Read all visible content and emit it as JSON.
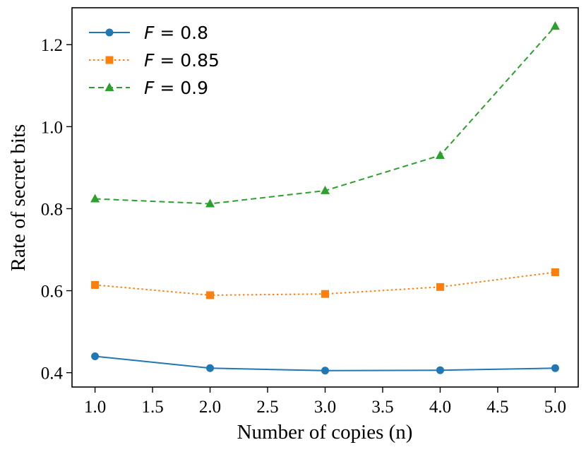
{
  "chart_data": {
    "type": "line",
    "xlabel": "Number of copies (n)",
    "ylabel": "Rate of secret bits",
    "xlim": [
      0.8,
      5.2
    ],
    "ylim": [
      0.365,
      1.29
    ],
    "xticks": [
      1.0,
      1.5,
      2.0,
      2.5,
      3.0,
      3.5,
      4.0,
      4.5,
      5.0
    ],
    "xtick_labels": [
      "1.0",
      "1.5",
      "2.0",
      "2.5",
      "3.0",
      "3.5",
      "4.0",
      "4.5",
      "5.0"
    ],
    "yticks": [
      0.4,
      0.6,
      0.8,
      1.0,
      1.2
    ],
    "ytick_labels": [
      "0.4",
      "0.6",
      "0.8",
      "1.0",
      "1.2"
    ],
    "grid": false,
    "legend_position": "top-left",
    "x": [
      1.0,
      2.0,
      3.0,
      4.0,
      5.0
    ],
    "series": [
      {
        "name": "F = 0.8",
        "name_var": "F",
        "name_value": "0.8",
        "values": [
          0.44,
          0.411,
          0.405,
          0.406,
          0.411
        ],
        "color": "#1f77b4",
        "line_style": "solid",
        "marker": "circle"
      },
      {
        "name": "F = 0.85",
        "name_var": "F",
        "name_value": "0.85",
        "values": [
          0.614,
          0.589,
          0.592,
          0.609,
          0.645
        ],
        "color": "#ff7f0e",
        "line_style": "dotted",
        "marker": "square"
      },
      {
        "name": "F = 0.9",
        "name_var": "F",
        "name_value": "0.9",
        "values": [
          0.824,
          0.812,
          0.844,
          0.93,
          1.245
        ],
        "color": "#2ca02c",
        "line_style": "dashed",
        "marker": "triangle"
      }
    ]
  }
}
